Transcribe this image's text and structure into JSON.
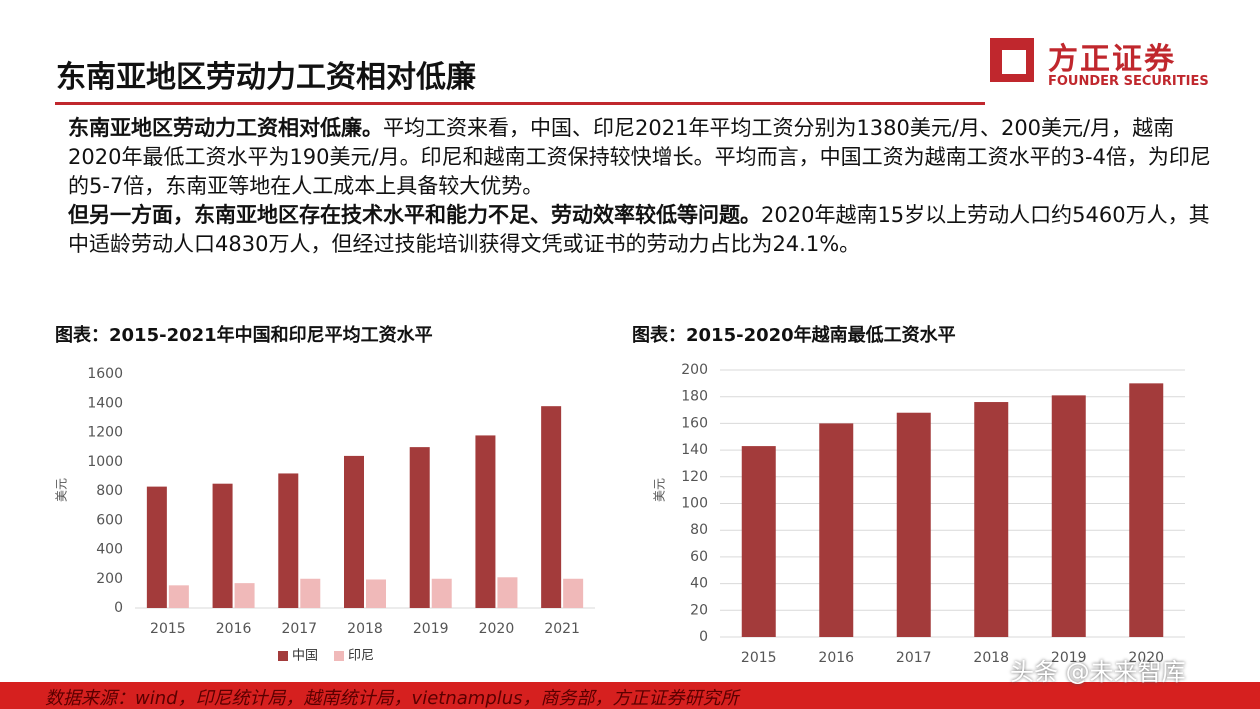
{
  "header": {
    "title": "东南亚地区劳动力工资相对低廉",
    "logo_cn": "方正证券",
    "logo_en": "FOUNDER SECURITIES"
  },
  "paragraphs": [
    {
      "bold": "东南亚地区劳动力工资相对低廉。",
      "text": "平均工资来看，中国、印尼2021年平均工资分别为1380美元/月、200美元/月，越南2020年最低工资水平为190美元/月。印尼和越南工资保持较快增长。平均而言，中国工资为越南工资水平的3-4倍，为印尼的5-7倍，东南亚等地在人工成本上具备较大优势。"
    },
    {
      "bold": "但另一方面，东南亚地区存在技术水平和能力不足、劳动效率较低等问题。",
      "text": "2020年越南15岁以上劳动人口约5460万人，其中适龄劳动人口4830万人，但经过技能培训获得文凭或证书的劳动力占比为24.1%。"
    }
  ],
  "chart_data": [
    {
      "type": "bar",
      "title": "图表：2015-2021年中国和印尼平均工资水平",
      "y_label": "美元",
      "categories": [
        "2015",
        "2016",
        "2017",
        "2018",
        "2019",
        "2020",
        "2021"
      ],
      "series": [
        {
          "name": "中国",
          "color": "#a33b3b",
          "values": [
            830,
            850,
            920,
            1040,
            1100,
            1180,
            1380
          ]
        },
        {
          "name": "印尼",
          "color": "#f0b9b9",
          "values": [
            155,
            170,
            200,
            195,
            200,
            210,
            200
          ]
        }
      ],
      "ylim": [
        0,
        1600
      ],
      "yticks": [
        0,
        200,
        400,
        600,
        800,
        1000,
        1200,
        1400,
        1600
      ],
      "grid": false,
      "legend": "bottom"
    },
    {
      "type": "bar",
      "title": "图表：2015-2020年越南最低工资水平",
      "y_label": "美元",
      "categories": [
        "2015",
        "2016",
        "2017",
        "2018",
        "2019",
        "2020"
      ],
      "values": [
        143,
        160,
        168,
        176,
        181,
        190
      ],
      "color": "#a33b3b",
      "ylim": [
        0,
        200
      ],
      "yticks": [
        0,
        20,
        40,
        60,
        80,
        100,
        120,
        140,
        160,
        180,
        200
      ],
      "grid": true
    }
  ],
  "footer": {
    "source": "数据来源：wind，印尼统计局，越南统计局，vietnamplus，商务部，方正证券研究所",
    "watermark": "头条 @未来智库"
  }
}
